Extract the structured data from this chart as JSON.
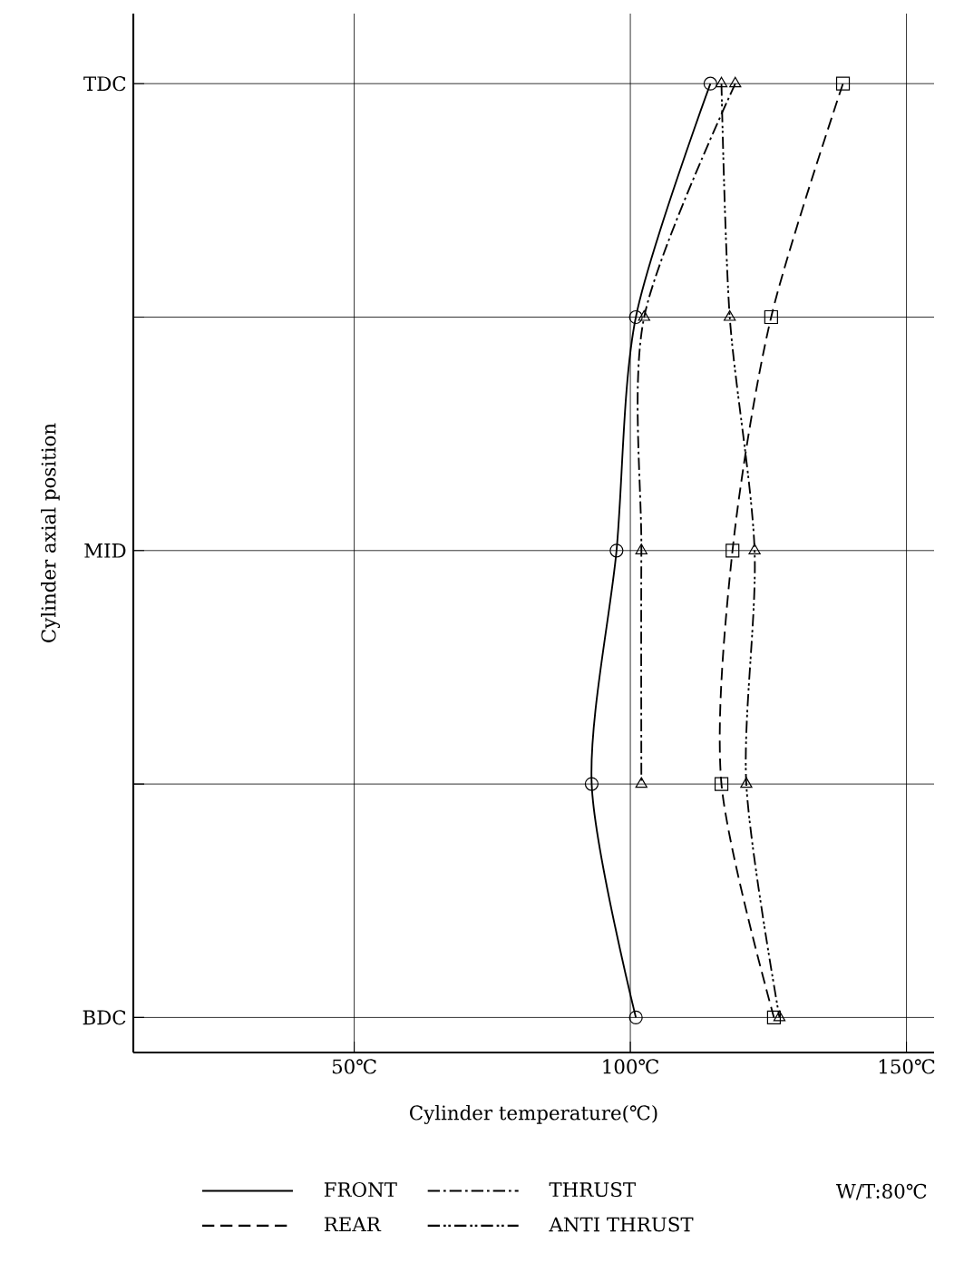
{
  "chart_data": {
    "type": "line",
    "xlabel": "Cylinder temperature(℃)",
    "ylabel": "Cylinder axial position",
    "orientation": "horizontal",
    "categories": [
      "TDC",
      null,
      "MID",
      null,
      "BDC"
    ],
    "xlim": [
      10,
      155
    ],
    "xticks": [
      {
        "value": 50,
        "label": "50℃"
      },
      {
        "value": 100,
        "label": "100℃"
      },
      {
        "value": 150,
        "label": "150℃"
      }
    ],
    "grid": true,
    "legend": "bottom",
    "annotations": [
      "W/T:80℃"
    ],
    "series": [
      {
        "name": "FRONT",
        "color": "#000000",
        "line_style": "solid",
        "marker": "circle",
        "values": [
          114.5,
          101,
          97.5,
          93,
          101
        ]
      },
      {
        "name": "THRUST",
        "color": "#000000",
        "line_style": "dashdot",
        "marker": "triangle",
        "values": [
          119,
          102.5,
          102,
          102,
          null
        ]
      },
      {
        "name": "REAR",
        "color": "#000000",
        "line_style": "dashed",
        "marker": "square",
        "values": [
          138.5,
          125.5,
          118.5,
          116.5,
          126
        ]
      },
      {
        "name": "ANTI THRUST",
        "color": "#000000",
        "line_style": "dashdotdot",
        "marker": "triangle",
        "values": [
          116.5,
          118,
          122.5,
          121,
          127
        ]
      }
    ]
  }
}
